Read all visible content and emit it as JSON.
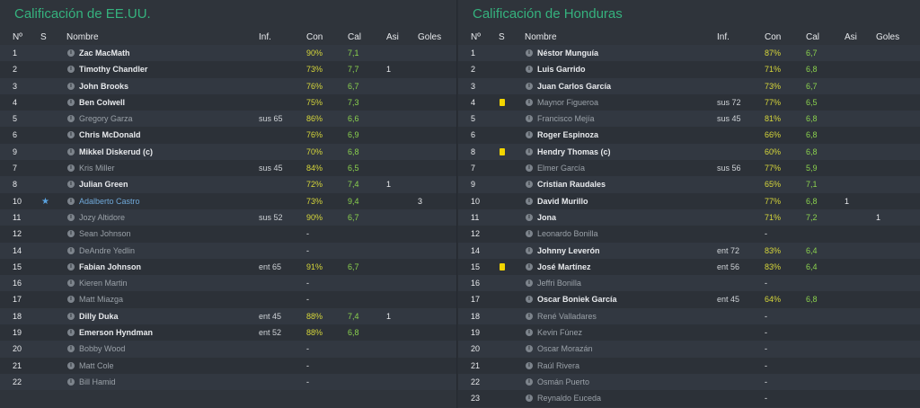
{
  "usa": {
    "title": "Calificación de EE.UU.",
    "columns": {
      "num": "Nº",
      "s": "S",
      "name": "Nombre",
      "inf": "Inf.",
      "con": "Con",
      "cal": "Cal",
      "asi": "Asi",
      "goles": "Goles"
    },
    "rows": [
      {
        "num": "1",
        "name": "Zac MacMath",
        "inf": "",
        "con": "90%",
        "cal": "7,1",
        "asi": "",
        "goles": "",
        "starter": true
      },
      {
        "num": "2",
        "name": "Timothy Chandler",
        "inf": "",
        "con": "73%",
        "cal": "7,7",
        "asi": "1",
        "goles": "",
        "starter": true
      },
      {
        "num": "3",
        "name": "John Brooks",
        "inf": "",
        "con": "76%",
        "cal": "6,7",
        "asi": "",
        "goles": "",
        "starter": true
      },
      {
        "num": "4",
        "name": "Ben Colwell",
        "inf": "",
        "con": "75%",
        "cal": "7,3",
        "asi": "",
        "goles": "",
        "starter": true
      },
      {
        "num": "5",
        "name": "Gregory Garza",
        "inf": "sus 65",
        "con": "86%",
        "cal": "6,6",
        "asi": "",
        "goles": "",
        "starter": false
      },
      {
        "num": "6",
        "name": "Chris McDonald",
        "inf": "",
        "con": "76%",
        "cal": "6,9",
        "asi": "",
        "goles": "",
        "starter": true
      },
      {
        "num": "9",
        "name": "Mikkel Diskerud (c)",
        "inf": "",
        "con": "70%",
        "cal": "6,8",
        "asi": "",
        "goles": "",
        "starter": true
      },
      {
        "num": "7",
        "name": "Kris Miller",
        "inf": "sus 45",
        "con": "84%",
        "cal": "6,5",
        "asi": "",
        "goles": "",
        "starter": false
      },
      {
        "num": "8",
        "name": "Julian Green",
        "inf": "",
        "con": "72%",
        "cal": "7,4",
        "asi": "1",
        "goles": "",
        "starter": true
      },
      {
        "num": "10",
        "name": "Adalberto Castro",
        "inf": "",
        "con": "73%",
        "cal": "9,4",
        "asi": "",
        "goles": "3",
        "starter": false,
        "star": true
      },
      {
        "num": "11",
        "name": "Jozy Altidore",
        "inf": "sus 52",
        "con": "90%",
        "cal": "6,7",
        "asi": "",
        "goles": "",
        "starter": false
      },
      {
        "num": "12",
        "name": "Sean Johnson",
        "inf": "",
        "con": "-",
        "cal": "",
        "asi": "",
        "goles": "",
        "starter": false
      },
      {
        "num": "14",
        "name": "DeAndre Yedlin",
        "inf": "",
        "con": "-",
        "cal": "",
        "asi": "",
        "goles": "",
        "starter": false
      },
      {
        "num": "15",
        "name": "Fabian Johnson",
        "inf": "ent 65",
        "con": "91%",
        "cal": "6,7",
        "asi": "",
        "goles": "",
        "starter": true
      },
      {
        "num": "16",
        "name": "Kieren Martin",
        "inf": "",
        "con": "-",
        "cal": "",
        "asi": "",
        "goles": "",
        "starter": false
      },
      {
        "num": "17",
        "name": "Matt Miazga",
        "inf": "",
        "con": "-",
        "cal": "",
        "asi": "",
        "goles": "",
        "starter": false
      },
      {
        "num": "18",
        "name": "Dilly Duka",
        "inf": "ent 45",
        "con": "88%",
        "cal": "7,4",
        "asi": "1",
        "goles": "",
        "starter": true
      },
      {
        "num": "19",
        "name": "Emerson Hyndman",
        "inf": "ent 52",
        "con": "88%",
        "cal": "6,8",
        "asi": "",
        "goles": "",
        "starter": true
      },
      {
        "num": "20",
        "name": "Bobby Wood",
        "inf": "",
        "con": "-",
        "cal": "",
        "asi": "",
        "goles": "",
        "starter": false
      },
      {
        "num": "21",
        "name": "Matt Cole",
        "inf": "",
        "con": "-",
        "cal": "",
        "asi": "",
        "goles": "",
        "starter": false
      },
      {
        "num": "22",
        "name": "Bill Hamid",
        "inf": "",
        "con": "-",
        "cal": "",
        "asi": "",
        "goles": "",
        "starter": false
      }
    ]
  },
  "hon": {
    "title": "Calificación de Honduras",
    "columns": {
      "num": "Nº",
      "s": "S",
      "name": "Nombre",
      "inf": "Inf.",
      "con": "Con",
      "cal": "Cal",
      "asi": "Asi",
      "goles": "Goles"
    },
    "rows": [
      {
        "num": "1",
        "name": "Néstor Munguía",
        "inf": "",
        "con": "87%",
        "cal": "6,7",
        "asi": "",
        "goles": "",
        "starter": true
      },
      {
        "num": "2",
        "name": "Luis Garrido",
        "inf": "",
        "con": "71%",
        "cal": "6,8",
        "asi": "",
        "goles": "",
        "starter": true
      },
      {
        "num": "3",
        "name": "Juan Carlos García",
        "inf": "",
        "con": "73%",
        "cal": "6,7",
        "asi": "",
        "goles": "",
        "starter": true
      },
      {
        "num": "4",
        "name": "Maynor Figueroa",
        "inf": "sus 72",
        "con": "77%",
        "cal": "6,5",
        "asi": "",
        "goles": "",
        "starter": false,
        "card": true
      },
      {
        "num": "5",
        "name": "Francisco Mejía",
        "inf": "sus 45",
        "con": "81%",
        "cal": "6,8",
        "asi": "",
        "goles": "",
        "starter": false
      },
      {
        "num": "6",
        "name": "Roger Espinoza",
        "inf": "",
        "con": "66%",
        "cal": "6,8",
        "asi": "",
        "goles": "",
        "starter": true
      },
      {
        "num": "8",
        "name": "Hendry Thomas (c)",
        "inf": "",
        "con": "60%",
        "cal": "6,8",
        "asi": "",
        "goles": "",
        "starter": true,
        "card": true
      },
      {
        "num": "7",
        "name": "Elmer García",
        "inf": "sus 56",
        "con": "77%",
        "cal": "5,9",
        "asi": "",
        "goles": "",
        "starter": false
      },
      {
        "num": "9",
        "name": "Cristian Raudales",
        "inf": "",
        "con": "65%",
        "cal": "7,1",
        "asi": "",
        "goles": "",
        "starter": true
      },
      {
        "num": "10",
        "name": "David Murillo",
        "inf": "",
        "con": "77%",
        "cal": "6,8",
        "asi": "1",
        "goles": "",
        "starter": true
      },
      {
        "num": "11",
        "name": "Jona",
        "inf": "",
        "con": "71%",
        "cal": "7,2",
        "asi": "",
        "goles": "1",
        "starter": true
      },
      {
        "num": "12",
        "name": "Leonardo Bonilla",
        "inf": "",
        "con": "-",
        "cal": "",
        "asi": "",
        "goles": "",
        "starter": false
      },
      {
        "num": "14",
        "name": "Johnny Leverón",
        "inf": "ent 72",
        "con": "83%",
        "cal": "6,4",
        "asi": "",
        "goles": "",
        "starter": true
      },
      {
        "num": "15",
        "name": "José Martínez",
        "inf": "ent 56",
        "con": "83%",
        "cal": "6,4",
        "asi": "",
        "goles": "",
        "starter": true,
        "card": true
      },
      {
        "num": "16",
        "name": "Jeffri Bonilla",
        "inf": "",
        "con": "-",
        "cal": "",
        "asi": "",
        "goles": "",
        "starter": false
      },
      {
        "num": "17",
        "name": "Oscar Boniek García",
        "inf": "ent 45",
        "con": "64%",
        "cal": "6,8",
        "asi": "",
        "goles": "",
        "starter": true
      },
      {
        "num": "18",
        "name": "René Valladares",
        "inf": "",
        "con": "-",
        "cal": "",
        "asi": "",
        "goles": "",
        "starter": false
      },
      {
        "num": "19",
        "name": "Kevin Fúnez",
        "inf": "",
        "con": "-",
        "cal": "",
        "asi": "",
        "goles": "",
        "starter": false
      },
      {
        "num": "20",
        "name": "Oscar Morazán",
        "inf": "",
        "con": "-",
        "cal": "",
        "asi": "",
        "goles": "",
        "starter": false
      },
      {
        "num": "21",
        "name": "Raúl Rivera",
        "inf": "",
        "con": "-",
        "cal": "",
        "asi": "",
        "goles": "",
        "starter": false
      },
      {
        "num": "22",
        "name": "Osmán Puerto",
        "inf": "",
        "con": "-",
        "cal": "",
        "asi": "",
        "goles": "",
        "starter": false
      },
      {
        "num": "23",
        "name": "Reynaldo Euceda",
        "inf": "",
        "con": "-",
        "cal": "",
        "asi": "",
        "goles": "",
        "starter": false
      }
    ]
  }
}
